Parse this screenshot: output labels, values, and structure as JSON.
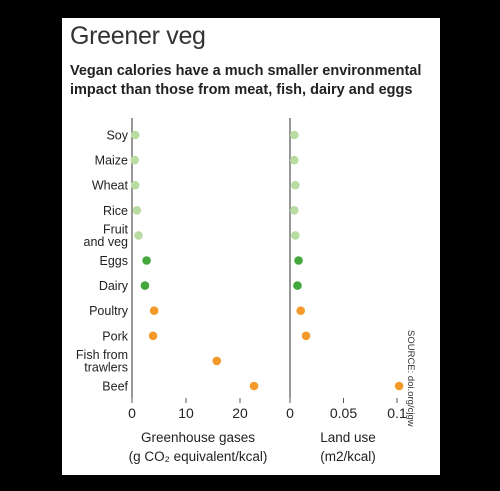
{
  "title": "Greener veg",
  "subtitle": "Vegan calories have a much smaller environmental impact than those from meat, fish, dairy and eggs",
  "source": "SOURCE: doi.org/cjgw",
  "colors": {
    "plant": "#b9dca2",
    "animal_dairy_eggs": "#43a83c",
    "meat_fish": "#f39a2b",
    "axis": "#555555",
    "text": "#222222"
  },
  "chart_data": [
    {
      "type": "scatter",
      "categories": [
        "Soy",
        "Maize",
        "Wheat",
        "Rice",
        "Fruit and veg",
        "Eggs",
        "Dairy",
        "Poultry",
        "Pork",
        "Fish from trawlers",
        "Beef"
      ],
      "category_lines": [
        [
          "Soy"
        ],
        [
          "Maize"
        ],
        [
          "Wheat"
        ],
        [
          "Rice"
        ],
        [
          "Fruit",
          "and veg"
        ],
        [
          "Eggs"
        ],
        [
          "Dairy"
        ],
        [
          "Poultry"
        ],
        [
          "Pork"
        ],
        [
          "Fish from",
          "trawlers"
        ],
        [
          "Beef"
        ]
      ],
      "values": [
        0.6,
        0.5,
        0.6,
        0.9,
        1.2,
        2.7,
        2.4,
        4.1,
        3.9,
        15.7,
        22.6
      ],
      "color_groups": [
        "plant",
        "plant",
        "plant",
        "plant",
        "plant",
        "animal_dairy_eggs",
        "animal_dairy_eggs",
        "meat_fish",
        "meat_fish",
        "meat_fish",
        "meat_fish"
      ],
      "xlabel_lines": [
        "Greenhouse gases",
        "(g CO₂ equivalent/kcal)"
      ],
      "xlim": [
        0,
        25
      ],
      "xticks": [
        0,
        10,
        20
      ],
      "xtick_labels": [
        "0",
        "10",
        "20"
      ]
    },
    {
      "type": "scatter",
      "categories": [
        "Soy",
        "Maize",
        "Wheat",
        "Rice",
        "Fruit and veg",
        "Eggs",
        "Dairy",
        "Poultry",
        "Pork",
        "Fish from trawlers",
        "Beef"
      ],
      "values": [
        0.004,
        0.004,
        0.005,
        0.004,
        0.005,
        0.008,
        0.007,
        0.01,
        0.015,
        null,
        0.102
      ],
      "color_groups": [
        "plant",
        "plant",
        "plant",
        "plant",
        "plant",
        "animal_dairy_eggs",
        "animal_dairy_eggs",
        "meat_fish",
        "meat_fish",
        "meat_fish",
        "meat_fish"
      ],
      "xlabel_lines": [
        "Land use",
        "(m2/kcal)"
      ],
      "xlim": [
        0,
        0.11
      ],
      "xticks": [
        0,
        0.05,
        0.1
      ],
      "xtick_labels": [
        "0",
        "0.05",
        "0.1"
      ]
    }
  ]
}
